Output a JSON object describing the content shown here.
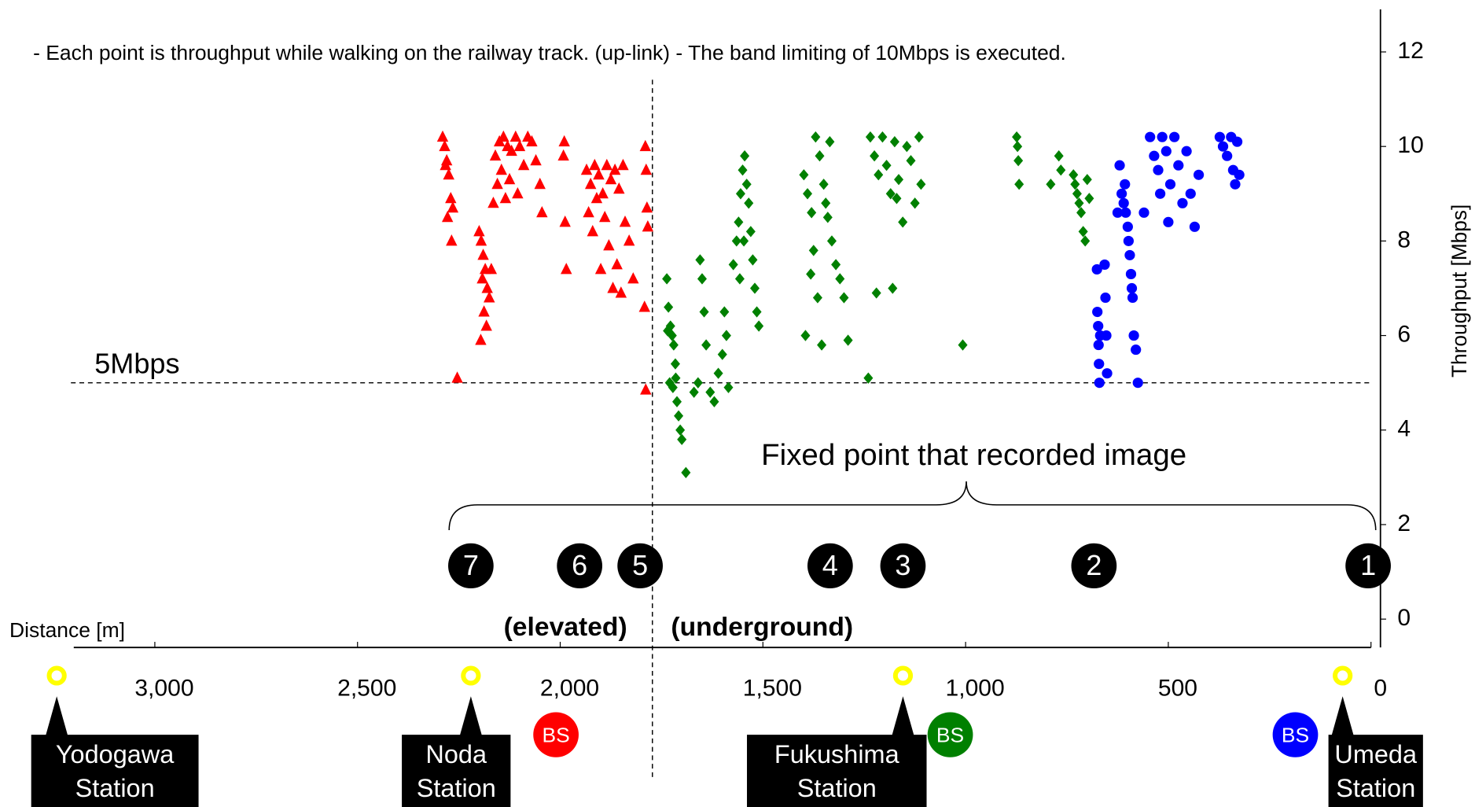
{
  "chart_data": {
    "type": "scatter",
    "title": "- Each point is throughput while walking on the railway track. (up-link) - The band limiting of 10Mbps is executed.",
    "xlabel": "Distance [m]",
    "ylabel": "Throughput [Mbps]",
    "xlim": [
      3200,
      0
    ],
    "ylim": [
      -0.6,
      12.9
    ],
    "xticks": [
      {
        "value": 3000,
        "label": "3,000"
      },
      {
        "value": 2500,
        "label": "2,500"
      },
      {
        "value": 2000,
        "label": "2,000"
      },
      {
        "value": 1500,
        "label": "1,500"
      },
      {
        "value": 1000,
        "label": "1,000"
      },
      500,
      0
    ],
    "yticks": [
      0,
      2,
      4,
      6,
      8,
      10,
      12
    ],
    "threshold": {
      "value": 5,
      "label": "5Mbps"
    },
    "annotation": "Fixed point that recorded image",
    "fixed_points": [
      "7",
      "6",
      "5",
      "4",
      "3",
      "2",
      "1"
    ],
    "sections": [
      "(elevated)",
      "(underground)"
    ],
    "stations": [
      [
        "Yodogawa",
        "Station"
      ],
      [
        "Noda",
        "Station"
      ],
      [
        "Fukushima",
        "Station"
      ],
      [
        "Umeda",
        "Station"
      ]
    ],
    "base_stations": [
      {
        "label": "BS",
        "color": "#ff0000"
      },
      {
        "label": "BS",
        "color": "#008000"
      },
      {
        "label": "BS",
        "color": "#0000ff"
      }
    ],
    "series": [
      {
        "color": "#ff0000",
        "marker": "triangle",
        "x": [
          2290,
          2285,
          2280,
          2275,
          2283,
          2270,
          2265,
          2278,
          2268,
          2254,
          2200,
          2195,
          2190,
          2185,
          2192,
          2180,
          2175,
          2188,
          2182,
          2196,
          2170,
          2165,
          2160,
          2150,
          2140,
          2130,
          2120,
          2110,
          2100,
          2090,
          2080,
          2070,
          2060,
          2050,
          2145,
          2125,
          2105,
          2155,
          2045,
          2135,
          1990,
          1992,
          1988,
          1985,
          1935,
          1925,
          1915,
          1905,
          1895,
          1885,
          1875,
          1865,
          1855,
          1845,
          1930,
          1920,
          1910,
          1900,
          1890,
          1880,
          1870,
          1860,
          1850,
          1840,
          1830,
          1820,
          1790,
          1788,
          1786,
          1784,
          1792,
          1789
        ],
        "values": [
          10.2,
          10.0,
          9.7,
          9.4,
          9.6,
          8.9,
          8.7,
          8.5,
          8.0,
          5.1,
          8.2,
          8.0,
          7.7,
          7.4,
          7.2,
          7.0,
          6.8,
          6.5,
          6.2,
          5.9,
          7.4,
          8.8,
          9.8,
          10.1,
          10.2,
          10.0,
          9.9,
          10.2,
          10.0,
          9.6,
          10.2,
          10.1,
          9.7,
          9.2,
          9.5,
          9.3,
          9.0,
          9.2,
          8.6,
          8.9,
          10.1,
          9.8,
          8.4,
          7.4,
          9.5,
          9.2,
          9.6,
          9.4,
          9.0,
          9.6,
          9.3,
          9.5,
          9.1,
          9.6,
          8.6,
          8.2,
          8.9,
          7.4,
          8.5,
          7.9,
          7.0,
          7.5,
          6.9,
          8.4,
          8.0,
          7.2,
          10.0,
          9.5,
          8.7,
          8.3,
          6.6,
          4.85
        ]
      },
      {
        "color": "#008000",
        "marker": "diamond",
        "x": [
          1737,
          1733,
          1728,
          1724,
          1720,
          1716,
          1730,
          1722,
          1712,
          1708,
          1704,
          1700,
          1690,
          1715,
          1735,
          1655,
          1650,
          1645,
          1640,
          1660,
          1630,
          1620,
          1610,
          1600,
          1590,
          1595,
          1585,
          1670,
          1573,
          1565,
          1560,
          1555,
          1550,
          1545,
          1540,
          1535,
          1530,
          1525,
          1520,
          1515,
          1510,
          1547,
          1557,
          1399,
          1390,
          1380,
          1370,
          1360,
          1350,
          1340,
          1330,
          1320,
          1310,
          1300,
          1290,
          1382,
          1395,
          1365,
          1355,
          1335,
          1345,
          1375,
          1235,
          1225,
          1215,
          1205,
          1195,
          1185,
          1175,
          1165,
          1155,
          1145,
          1135,
          1125,
          1115,
          1110,
          1240,
          1220,
          1180,
          1170,
          1007,
          874,
          872,
          870,
          868,
          770,
          765,
          790,
          734,
          730,
          725,
          720,
          715,
          710,
          705,
          700,
          695
        ],
        "values": [
          7.2,
          6.6,
          6.2,
          6.0,
          5.8,
          5.4,
          5.0,
          4.9,
          4.6,
          4.3,
          4.0,
          3.8,
          3.1,
          5.1,
          6.1,
          7.6,
          7.2,
          6.5,
          5.8,
          5.0,
          4.8,
          4.6,
          5.2,
          5.6,
          6.0,
          6.5,
          4.9,
          4.8,
          7.5,
          8.0,
          8.4,
          9.0,
          9.5,
          9.8,
          9.2,
          8.8,
          8.2,
          7.6,
          7.0,
          6.5,
          6.2,
          8.0,
          7.2,
          9.4,
          9.0,
          8.6,
          10.2,
          9.8,
          9.2,
          8.5,
          8.0,
          7.5,
          7.2,
          6.8,
          5.9,
          7.3,
          6.0,
          6.8,
          5.8,
          10.1,
          8.8,
          7.8,
          10.2,
          9.8,
          9.4,
          10.2,
          9.6,
          9.0,
          10.1,
          9.3,
          8.4,
          10.0,
          9.7,
          8.8,
          10.2,
          9.2,
          5.1,
          6.9,
          7.0,
          8.9,
          5.8,
          10.2,
          10.0,
          9.7,
          9.2,
          9.8,
          9.5,
          9.2,
          9.4,
          9.2,
          9.0,
          8.8,
          8.6,
          8.2,
          8.0,
          9.3,
          8.9
        ]
      },
      {
        "color": "#0000ff",
        "marker": "circle",
        "x": [
          676,
          675,
          673,
          672,
          671,
          670,
          668,
          657,
          655,
          653,
          651,
          620,
          615,
          610,
          605,
          600,
          598,
          595,
          592,
          590,
          588,
          585,
          580,
          575,
          625,
          607,
          560,
          545,
          535,
          525,
          515,
          505,
          495,
          485,
          475,
          465,
          455,
          445,
          435,
          425,
          500,
          520,
          373,
          365,
          355,
          345,
          340,
          335,
          330,
          325
        ],
        "values": [
          7.4,
          6.5,
          6.2,
          5.8,
          5.4,
          5.0,
          6.0,
          7.5,
          6.8,
          6.0,
          5.2,
          9.6,
          9.0,
          8.8,
          8.6,
          8.3,
          8.0,
          7.7,
          7.3,
          7.0,
          6.8,
          6.0,
          5.7,
          5.0,
          8.6,
          9.2,
          8.6,
          10.2,
          9.8,
          9.5,
          10.2,
          9.9,
          9.2,
          10.2,
          9.6,
          8.8,
          9.9,
          9.0,
          8.3,
          9.4,
          8.4,
          9.0,
          10.2,
          10.0,
          9.8,
          10.2,
          9.5,
          9.2,
          10.1,
          9.4
        ]
      }
    ]
  }
}
